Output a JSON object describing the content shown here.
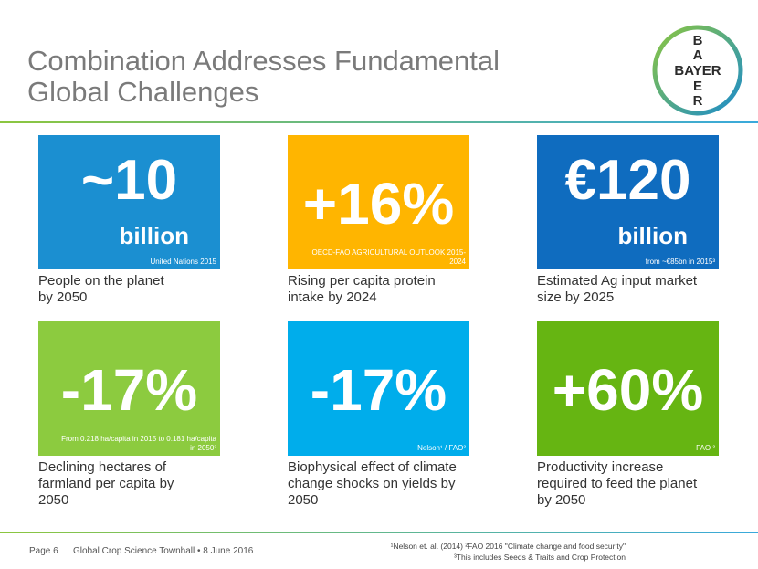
{
  "header": {
    "title": [
      "Combination Addresses Fundamental",
      "Global Challenges"
    ],
    "logo": {
      "horizontal": "BAYER",
      "vertical_top": [
        "B",
        "A"
      ],
      "vertical_bottom": [
        "E",
        "R"
      ]
    }
  },
  "tiles": [
    {
      "big": "~10",
      "unit": "billion",
      "source": "United Nations 2015",
      "caption": [
        "People on the planet",
        "by 2050"
      ]
    },
    {
      "big": "+16%",
      "unit": null,
      "source": "OECD-FAO AGRICULTURAL OUTLOOK 2015-2024",
      "caption": [
        "Rising per capita protein",
        "intake by 2024"
      ]
    },
    {
      "big": "€120",
      "unit": "billion",
      "source": "from ~€85bn in 2015³",
      "caption": [
        "Estimated Ag input market",
        "size by 2025"
      ]
    },
    {
      "big": "-17%",
      "unit": null,
      "source": "From 0.218 ha/capita in 2015 to 0.181 ha/capita in 2050²",
      "caption": [
        "Declining hectares of",
        "farmland per capita by",
        "2050"
      ]
    },
    {
      "big": "-17%",
      "unit": null,
      "source": "Nelson¹ / FAO²",
      "caption": [
        "Biophysical effect of climate",
        "change shocks on yields by",
        "2050"
      ]
    },
    {
      "big": "+60%",
      "unit": null,
      "source": "FAO ²",
      "caption": [
        "Productivity increase",
        "required to feed the planet",
        "by 2050"
      ]
    }
  ],
  "footer": {
    "page": "Page 6",
    "event": "Global Crop Science Townhall • 8 June 2016",
    "footnotes": [
      "¹Nelson et. al. (2014) ²FAO 2016 \"Climate change and food security\"",
      "³This includes Seeds & Traits and Crop Protection"
    ]
  }
}
